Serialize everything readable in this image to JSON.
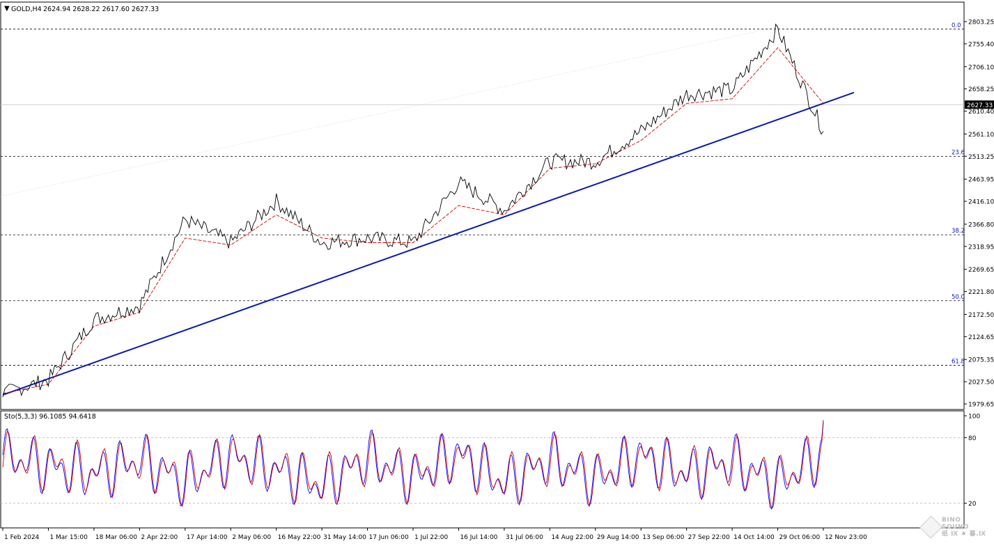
{
  "header": {
    "symbol": "GOLD,H4",
    "ohlc": "2624.94 2628.22 2617.60 2627.33"
  },
  "chart_data": [
    {
      "type": "line",
      "name": "price",
      "symbol": "GOLD",
      "timeframe": "H4",
      "x": [
        "1 Feb 2024",
        "1 Mar 15:00",
        "18 Mar 06:00",
        "2 Apr 22:00",
        "17 Apr 14:00",
        "2 May 06:00",
        "16 May 22:00",
        "31 May 14:00",
        "17 Jun 06:00",
        "1 Jul 22:00",
        "16 Jul 14:00",
        "31 Jul 06:00",
        "14 Aug 22:00",
        "29 Aug 14:00",
        "13 Sep 06:00",
        "27 Sep 22:00",
        "14 Oct 14:00",
        "29 Oct 06:00",
        "12 Nov 23:00"
      ],
      "series": [
        {
          "type": "line",
          "values": [
            2005,
            2035,
            2165,
            2195,
            2380,
            2330,
            2420,
            2330,
            2340,
            2330,
            2460,
            2400,
            2505,
            2505,
            2570,
            2650,
            2660,
            2790,
            2570
          ]
        },
        {
          "type": "line",
          "values": [
            2005,
            2025,
            2150,
            2180,
            2340,
            2325,
            2390,
            2340,
            2330,
            2330,
            2410,
            2390,
            2490,
            2500,
            2550,
            2630,
            2640,
            2750,
            2630
          ]
        }
      ],
      "y_ticks": [
        "2803.25",
        "2755.40",
        "2706.10",
        "2658.25",
        "2610.40",
        "2561.10",
        "2513.25",
        "2463.95",
        "2416.10",
        "2366.80",
        "2318.95",
        "2269.65",
        "2221.80",
        "2172.50",
        "2124.65",
        "2075.35",
        "2027.50",
        "1979.65"
      ],
      "ylim": [
        1979.65,
        2803.25
      ],
      "last_price_label": "2627.33",
      "last_price": 2627.33,
      "fib_levels": [
        {
          "label": "0.0",
          "value": 2790
        },
        {
          "label": "23.6",
          "value": 2516
        },
        {
          "label": "38.2",
          "value": 2347
        },
        {
          "label": "50.0",
          "value": 2205
        },
        {
          "label": "61.8",
          "value": 2066
        }
      ],
      "trendline": {
        "from": {
          "x": "1 Feb 2024",
          "y": 2002
        },
        "to": {
          "x": "12 Nov 23:00",
          "y": 2630
        }
      },
      "colors": {
        "price": "#000000",
        "ma": "#cc0000",
        "trendline": "#0a1aa8",
        "fib": "#000000"
      }
    },
    {
      "type": "line",
      "name": "stochastic",
      "label": "Sto(5,3,3) 96.1085 94.6418",
      "ylim": [
        0,
        100
      ],
      "y_ticks": [
        "100",
        "80",
        "20"
      ],
      "levels": [
        80,
        20
      ],
      "series": [
        {
          "type": "line",
          "color": "#0000ff",
          "values": [
            90,
            60,
            40,
            80,
            20,
            90,
            50,
            10,
            85,
            30,
            95,
            15,
            80,
            25,
            90,
            40,
            75,
            15,
            96
          ]
        },
        {
          "type": "line",
          "color": "#cc0000",
          "values": [
            85,
            65,
            45,
            75,
            25,
            85,
            55,
            15,
            80,
            35,
            90,
            20,
            75,
            30,
            85,
            45,
            70,
            20,
            94
          ]
        }
      ]
    }
  ],
  "watermark": {
    "line1": "BINO SOUND",
    "line2": "纸 Ⅸ ♠ 暮.Ⅸ"
  }
}
